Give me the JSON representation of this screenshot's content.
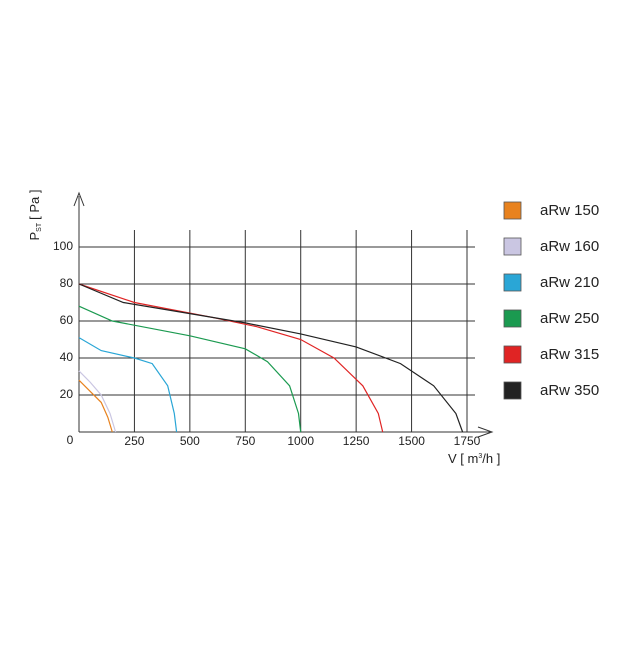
{
  "chart_data": {
    "type": "line",
    "y_label": {
      "main": "P",
      "sub": "ST",
      "unit": "[ Pa ]"
    },
    "x_label": {
      "main": "V [ m",
      "sup": "3",
      "unit": "/h ]"
    },
    "xlim": [
      0,
      1750
    ],
    "ylim": [
      0,
      100
    ],
    "xticks": [
      250,
      500,
      750,
      1000,
      1250,
      1500,
      1750
    ],
    "yticks": [
      0,
      20,
      40,
      60,
      80,
      100
    ],
    "grid": true,
    "series": [
      {
        "name": "aRw 150",
        "color": "#e8821e",
        "x": [
          0,
          50,
          100,
          130,
          150
        ],
        "values": [
          28,
          22,
          16,
          8,
          0
        ]
      },
      {
        "name": "aRw 160",
        "color": "#cac6e2",
        "x": [
          0,
          50,
          100,
          140,
          165
        ],
        "values": [
          33,
          27,
          20,
          10,
          0
        ]
      },
      {
        "name": "aRw 210",
        "color": "#2aa6d6",
        "x": [
          0,
          100,
          250,
          330,
          400,
          430,
          440
        ],
        "values": [
          51,
          44,
          40,
          37,
          25,
          10,
          0
        ]
      },
      {
        "name": "aRw 250",
        "color": "#1b9a50",
        "x": [
          0,
          150,
          500,
          750,
          850,
          950,
          990,
          1000
        ],
        "values": [
          68,
          60,
          52,
          45,
          38,
          25,
          10,
          0
        ]
      },
      {
        "name": "aRw 315",
        "color": "#e02424",
        "x": [
          0,
          250,
          600,
          800,
          1000,
          1150,
          1280,
          1350,
          1370
        ],
        "values": [
          80,
          70,
          62,
          57,
          50,
          40,
          25,
          10,
          0
        ]
      },
      {
        "name": "aRw 350",
        "color": "#222222",
        "x": [
          0,
          200,
          500,
          750,
          1000,
          1250,
          1450,
          1600,
          1700,
          1730
        ],
        "values": [
          80,
          70,
          64,
          59,
          53,
          46,
          37,
          25,
          10,
          0
        ]
      }
    ]
  }
}
